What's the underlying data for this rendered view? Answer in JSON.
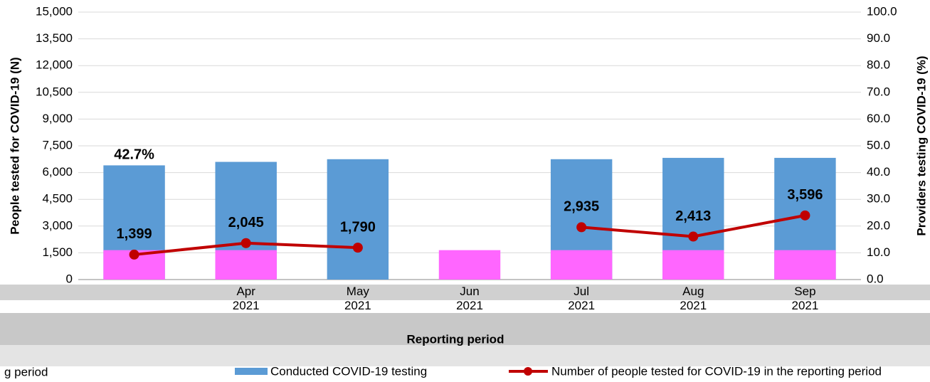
{
  "chart_data": {
    "type": "combo",
    "x_label": "Reporting period",
    "y_label": "People tested for COVID-19 (N)",
    "y2_label": "Providers testing COVID-19 (%)",
    "categories": [
      null,
      "Apr 2021",
      "May 2021",
      "Jun 2021",
      "Jul 2021",
      "Aug 2021",
      "Sep 2021"
    ],
    "ylim": [
      0,
      15000
    ],
    "yticks": [
      {
        "value": 0,
        "label": "0"
      },
      {
        "value": 1500,
        "label": "1,500"
      },
      {
        "value": 3000,
        "label": "3,000"
      },
      {
        "value": 4500,
        "label": "4,500"
      },
      {
        "value": 6000,
        "label": "6,000"
      },
      {
        "value": 7500,
        "label": "7,500"
      },
      {
        "value": 9000,
        "label": "9,000"
      },
      {
        "value": 10500,
        "label": "10,500"
      },
      {
        "value": 12000,
        "label": "12,000"
      },
      {
        "value": 13500,
        "label": "13,500"
      },
      {
        "value": 15000,
        "label": "15,000"
      }
    ],
    "y2lim": [
      0,
      100
    ],
    "y2ticks": [
      {
        "value": 0,
        "label": "0.0"
      },
      {
        "value": 10,
        "label": "10.0"
      },
      {
        "value": 20,
        "label": "20.0"
      },
      {
        "value": 30,
        "label": "30.0"
      },
      {
        "value": 40,
        "label": "40.0"
      },
      {
        "value": 50,
        "label": "50.0"
      },
      {
        "value": 60,
        "label": "60.0"
      },
      {
        "value": 70,
        "label": "70.0"
      },
      {
        "value": 80,
        "label": "80.0"
      },
      {
        "value": 90,
        "label": "90.0"
      },
      {
        "value": 100,
        "label": "100.0"
      }
    ],
    "grid": true,
    "series": [
      {
        "name": "Conducted COVID-19 testing",
        "type": "bar",
        "axis": "y2",
        "color": "#5b9bd5",
        "values": [
          42.7,
          44,
          45,
          null,
          45,
          45.5,
          45.5
        ],
        "value_labels": [
          "42.7%",
          null,
          null,
          null,
          null,
          null,
          null
        ]
      },
      {
        "type": "bar",
        "axis": "y2",
        "color": "#ff66ff",
        "values": [
          11,
          11,
          null,
          11,
          11,
          11,
          11
        ]
      },
      {
        "name": "Number of people tested for COVID-19 in the reporting period",
        "type": "line",
        "color": "#c00000",
        "values": [
          1399,
          2045,
          1790,
          null,
          2935,
          2413,
          3596
        ],
        "value_labels": [
          "1,399",
          "2,045",
          "1,790",
          null,
          "2,935",
          "2,413",
          "3,596"
        ]
      }
    ],
    "legend_fragment": "g period"
  }
}
